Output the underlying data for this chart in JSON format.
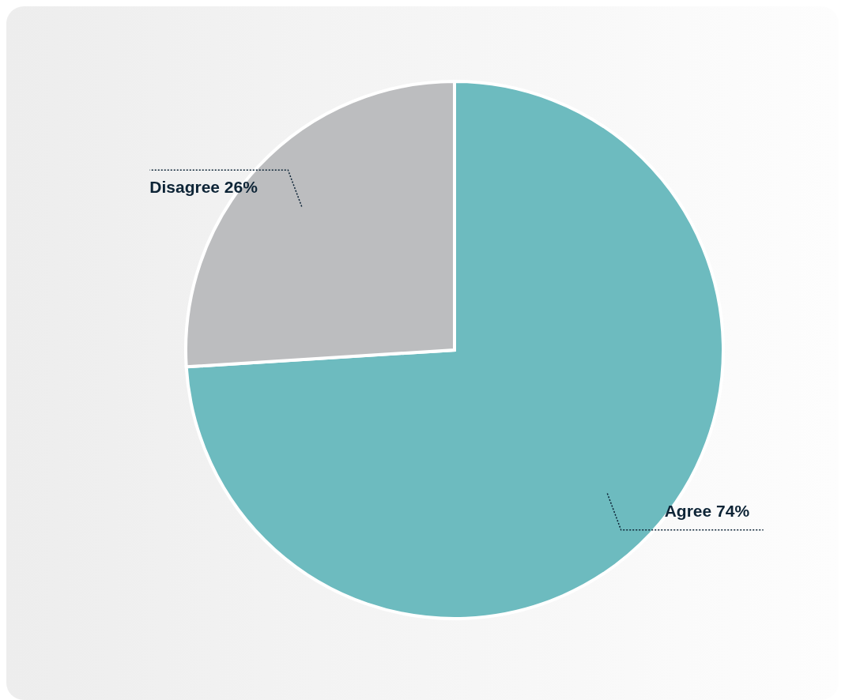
{
  "chart_data": {
    "type": "pie",
    "categories": [
      "Agree",
      "Disagree"
    ],
    "values": [
      74,
      26
    ],
    "colors": [
      "#6dbbbf",
      "#bcbdbf"
    ],
    "value_labels": [
      "74%",
      "26%"
    ]
  }
}
